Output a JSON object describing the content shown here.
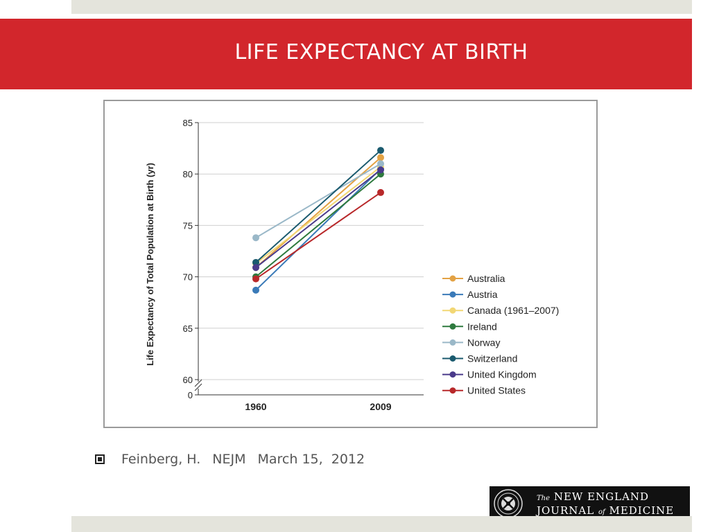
{
  "slide": {
    "title": "LIFE EXPECTANCY AT BIRTH"
  },
  "citation": {
    "author": "Feinberg, H.",
    "journal": "NEJM",
    "date": "March 15,  2012"
  },
  "logo": {
    "prefix": "The",
    "line1": "NEW ENGLAND",
    "line2a": "JOURNAL",
    "connector": "of",
    "line2b": "MEDICINE"
  },
  "chart_data": {
    "type": "line",
    "title": "",
    "xlabel": "",
    "ylabel": "Life Expectancy of Total Population at Birth (yr)",
    "categories": [
      "1960",
      "2009"
    ],
    "ylim": [
      60,
      85
    ],
    "yticks": [
      85,
      80,
      75,
      70,
      65,
      60
    ],
    "y_axis_break": true,
    "y_axis_zero_label": "0",
    "grid": true,
    "legend_position": "right",
    "series": [
      {
        "name": "Australia",
        "color": "#e3a244",
        "values": [
          70.9,
          81.6
        ]
      },
      {
        "name": "Austria",
        "color": "#3a7ab8",
        "values": [
          68.7,
          80.5
        ]
      },
      {
        "name": "Canada (1961–2007)",
        "color": "#f2d774",
        "values": [
          71.3,
          80.7
        ]
      },
      {
        "name": "Ireland",
        "color": "#2e7a3e",
        "values": [
          70.0,
          80.0
        ]
      },
      {
        "name": "Norway",
        "color": "#9ab8c8",
        "values": [
          73.8,
          81.0
        ]
      },
      {
        "name": "Switzerland",
        "color": "#1a5a6e",
        "values": [
          71.4,
          82.3
        ]
      },
      {
        "name": "United Kingdom",
        "color": "#4a3a8a",
        "values": [
          70.9,
          80.4
        ]
      },
      {
        "name": "United States",
        "color": "#b8282a",
        "values": [
          69.8,
          78.2
        ]
      }
    ]
  }
}
